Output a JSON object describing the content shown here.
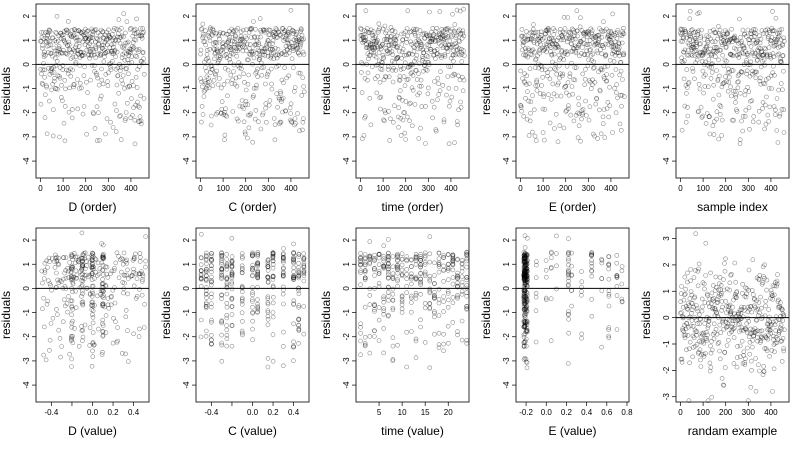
{
  "figure": {
    "point_color": "#000000",
    "point_opacity": 0.45,
    "line_color": "#000000",
    "axis_color": "#000000"
  },
  "chart_data": [
    {
      "type": "scatter",
      "xlabel": "D (order)",
      "ylabel": "residuals",
      "xlim": [
        -20,
        480
      ],
      "ylim": [
        -4.7,
        2.5
      ],
      "xticks": [
        0,
        100,
        200,
        300,
        400
      ],
      "xtick_labels": [
        "0",
        "100",
        "200",
        "300",
        "400"
      ],
      "yticks": [
        -4,
        -3,
        -2,
        -1,
        0,
        1,
        2
      ],
      "ytick_labels": [
        "-4",
        "-3",
        "-2",
        "-1",
        "0",
        "1",
        "2"
      ],
      "hline": 0,
      "xdist": {
        "kind": "index",
        "n": 460
      },
      "seed": 11,
      "points": []
    },
    {
      "type": "scatter",
      "xlabel": "C (order)",
      "ylabel": "residuals",
      "xlim": [
        -20,
        480
      ],
      "ylim": [
        -4.7,
        2.5
      ],
      "xticks": [
        0,
        100,
        200,
        300,
        400
      ],
      "xtick_labels": [
        "0",
        "100",
        "200",
        "300",
        "400"
      ],
      "yticks": [
        -4,
        -3,
        -2,
        -1,
        0,
        1,
        2
      ],
      "ytick_labels": [
        "-4",
        "-3",
        "-2",
        "-1",
        "0",
        "1",
        "2"
      ],
      "hline": 0,
      "xdist": {
        "kind": "index",
        "n": 460
      },
      "seed": 23,
      "points": []
    },
    {
      "type": "scatter",
      "xlabel": "time (order)",
      "ylabel": "residuals",
      "xlim": [
        -20,
        480
      ],
      "ylim": [
        -4.7,
        2.5
      ],
      "xticks": [
        0,
        100,
        200,
        300,
        400
      ],
      "xtick_labels": [
        "0",
        "100",
        "200",
        "300",
        "400"
      ],
      "yticks": [
        -4,
        -3,
        -2,
        -1,
        0,
        1,
        2
      ],
      "ytick_labels": [
        "-4",
        "-3",
        "-2",
        "-1",
        "0",
        "1",
        "2"
      ],
      "hline": 0,
      "xdist": {
        "kind": "index",
        "n": 460
      },
      "seed": 37,
      "points": []
    },
    {
      "type": "scatter",
      "xlabel": "E (order)",
      "ylabel": "residuals",
      "xlim": [
        -20,
        480
      ],
      "ylim": [
        -4.7,
        2.5
      ],
      "xticks": [
        0,
        100,
        200,
        300,
        400
      ],
      "xtick_labels": [
        "0",
        "100",
        "200",
        "300",
        "400"
      ],
      "yticks": [
        -4,
        -3,
        -2,
        -1,
        0,
        1,
        2
      ],
      "ytick_labels": [
        "-4",
        "-3",
        "-2",
        "-1",
        "0",
        "1",
        "2"
      ],
      "hline": 0,
      "xdist": {
        "kind": "index",
        "n": 460
      },
      "seed": 41,
      "points": []
    },
    {
      "type": "scatter",
      "xlabel": "sample index",
      "ylabel": "residuals",
      "xlim": [
        -20,
        480
      ],
      "ylim": [
        -4.7,
        2.5
      ],
      "xticks": [
        0,
        100,
        200,
        300,
        400
      ],
      "xtick_labels": [
        "0",
        "100",
        "200",
        "300",
        "400"
      ],
      "yticks": [
        -4,
        -3,
        -2,
        -1,
        0,
        1,
        2
      ],
      "ytick_labels": [
        "-4",
        "-3",
        "-2",
        "-1",
        "0",
        "1",
        "2"
      ],
      "hline": 0,
      "xdist": {
        "kind": "index",
        "n": 460
      },
      "seed": 53,
      "points": []
    },
    {
      "type": "scatter",
      "xlabel": "D (value)",
      "ylabel": "residuals",
      "xlim": [
        -0.55,
        0.55
      ],
      "ylim": [
        -4.7,
        2.5
      ],
      "xticks": [
        -0.4,
        -0.2,
        0.0,
        0.2,
        0.4
      ],
      "xtick_labels": [
        "-0.4",
        "",
        "0.0",
        "0.2",
        "0.4"
      ],
      "yticks": [
        -4,
        -3,
        -2,
        -1,
        0,
        1,
        2
      ],
      "ytick_labels": [
        "-4",
        "-3",
        "-2",
        "-1",
        "0",
        "1",
        "2"
      ],
      "hline": 0,
      "xdist": {
        "kind": "uniform",
        "min": -0.5,
        "max": 0.52,
        "n": 380,
        "bands": [
          -0.2,
          -0.1,
          0.0,
          0.1
        ]
      },
      "seed": 61,
      "points": []
    },
    {
      "type": "scatter",
      "xlabel": "C (value)",
      "ylabel": "residuals",
      "xlim": [
        -0.55,
        0.55
      ],
      "ylim": [
        -4.7,
        2.5
      ],
      "xticks": [
        -0.4,
        -0.2,
        0.0,
        0.2,
        0.4
      ],
      "xtick_labels": [
        "-0.4",
        "",
        "0.0",
        "0.2",
        "0.4"
      ],
      "yticks": [
        -4,
        -3,
        -2,
        -1,
        0,
        1,
        2
      ],
      "ytick_labels": [
        "-4",
        "-3",
        "-2",
        "-1",
        "0",
        "1",
        "2"
      ],
      "hline": 0,
      "xdist": {
        "kind": "levels",
        "levels": [
          -0.5,
          -0.45,
          -0.4,
          -0.3,
          -0.25,
          -0.2,
          -0.1,
          0.0,
          0.05,
          0.15,
          0.2,
          0.3,
          0.4,
          0.45,
          0.5
        ],
        "n": 380
      },
      "seed": 73,
      "points": []
    },
    {
      "type": "scatter",
      "xlabel": "time (value)",
      "ylabel": "residuals",
      "xlim": [
        0,
        24.5
      ],
      "ylim": [
        -4.7,
        2.5
      ],
      "xticks": [
        5,
        10,
        15,
        20
      ],
      "xtick_labels": [
        "5",
        "10",
        "15",
        "20"
      ],
      "yticks": [
        -4,
        -3,
        -2,
        -1,
        0,
        1,
        2
      ],
      "ytick_labels": [
        "-4",
        "-3",
        "-2",
        "-1",
        "0",
        "1",
        "2"
      ],
      "hline": 0,
      "xdist": {
        "kind": "levels",
        "levels": [
          1,
          2,
          3,
          4,
          5,
          6,
          7,
          8,
          9,
          10,
          11,
          12,
          13,
          14,
          15,
          16,
          17,
          18,
          19,
          20,
          21,
          22,
          23,
          24
        ],
        "n": 380
      },
      "seed": 89,
      "points": []
    },
    {
      "type": "scatter",
      "xlabel": "E (value)",
      "ylabel": "residuals",
      "xlim": [
        -0.3,
        0.82
      ],
      "ylim": [
        -4.7,
        2.5
      ],
      "xticks": [
        -0.2,
        0.0,
        0.2,
        0.4,
        0.6,
        0.8
      ],
      "xtick_labels": [
        "-0.2",
        "0.0",
        "0.2",
        "0.4",
        "0.6",
        "0.8"
      ],
      "yticks": [
        -4,
        -3,
        -2,
        -1,
        0,
        1,
        2
      ],
      "ytick_labels": [
        "-4",
        "-3",
        "-2",
        "-1",
        "0",
        "1",
        "2"
      ],
      "hline": 0,
      "xdist": {
        "kind": "levels",
        "levels": [
          -0.22,
          -0.21,
          -0.2,
          -0.19,
          -0.1,
          0.0,
          0.05,
          0.1,
          0.22,
          0.25,
          0.35,
          0.45,
          0.55,
          0.62,
          0.7,
          0.75
        ],
        "weights": [
          18,
          15,
          12,
          10,
          2,
          2,
          2,
          2,
          5,
          2,
          2,
          3,
          2,
          3,
          2,
          2
        ],
        "n": 380
      },
      "seed": 97,
      "points": []
    },
    {
      "type": "scatter",
      "xlabel": "randam example",
      "ylabel": "residuals",
      "xlim": [
        -20,
        480
      ],
      "ylim": [
        -3.2,
        3.4
      ],
      "xticks": [
        0,
        100,
        200,
        300,
        400
      ],
      "xtick_labels": [
        "0",
        "100",
        "200",
        "300",
        "400"
      ],
      "yticks": [
        -3,
        -2,
        -1,
        0,
        1,
        2,
        3
      ],
      "ytick_labels": [
        "-3",
        "-2",
        "-1",
        "0",
        "1",
        "2",
        "3"
      ],
      "hline": 0,
      "xdist": {
        "kind": "index",
        "n": 460
      },
      "seed": 109,
      "resid": "normal",
      "points": []
    }
  ]
}
